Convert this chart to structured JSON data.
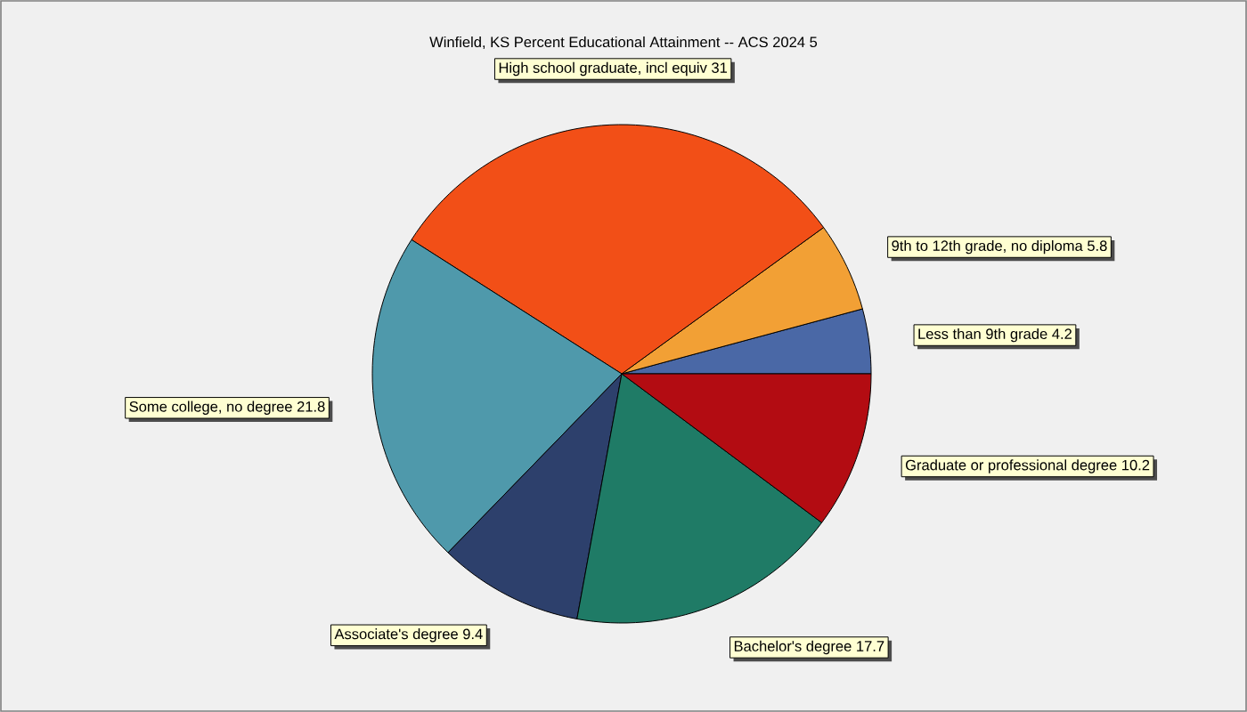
{
  "chart_data": {
    "type": "pie",
    "title": "Winfield, KS Percent Educational Attainment -- ACS 2024 5",
    "categories": [
      "Less than 9th grade 4.2",
      "9th to 12th grade, no diploma 5.8",
      "High school graduate, incl equiv 31",
      "Some college, no degree 21.8",
      "Associate's degree 9.4",
      "Bachelor's degree 17.7",
      "Graduate or professional degree 10.2"
    ],
    "values": [
      4.2,
      5.8,
      31,
      21.8,
      9.4,
      17.7,
      10.2
    ],
    "colors": [
      "#4a68a6",
      "#f2a035",
      "#f24f17",
      "#4f99ab",
      "#2d406c",
      "#1f7b66",
      "#b30c12"
    ]
  }
}
